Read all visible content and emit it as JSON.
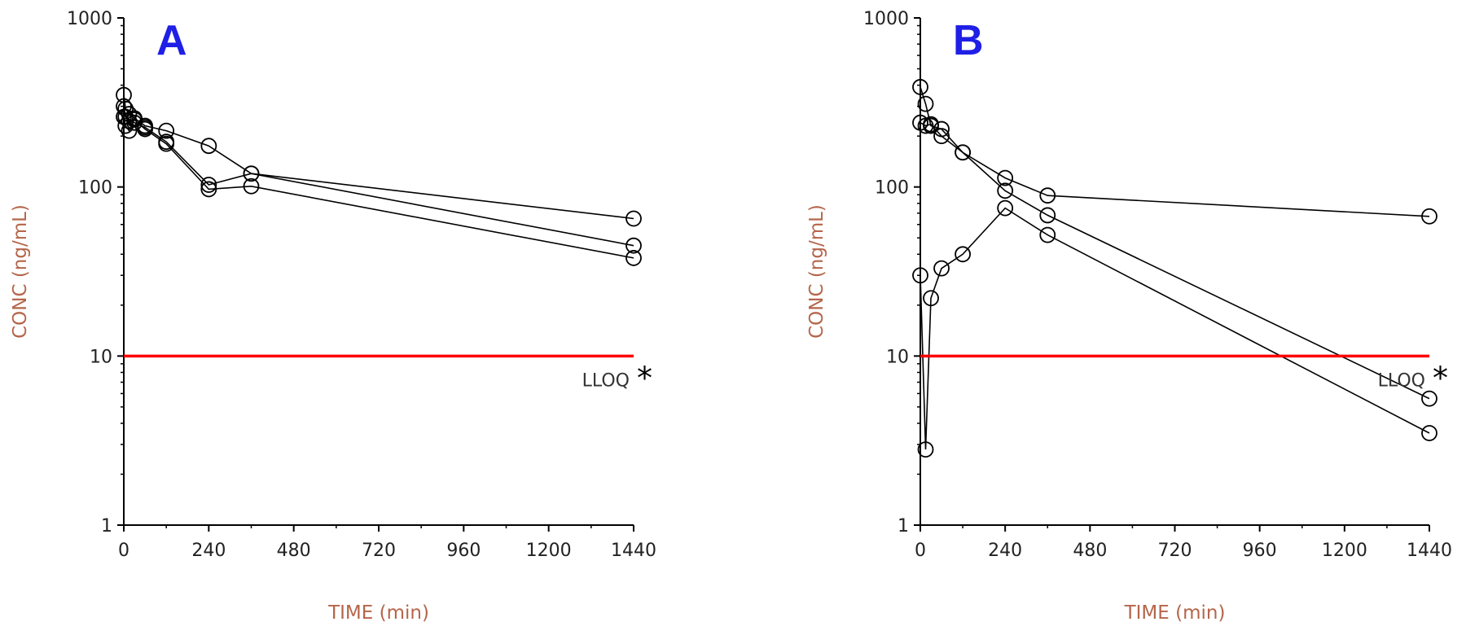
{
  "colors": {
    "axis_title": "#b5654a",
    "lloq_line": "#ff0000",
    "series": "#000000",
    "panel_letter": "#1f1fe6"
  },
  "chart_data": [
    {
      "type": "line",
      "panel": "A",
      "xlabel": "TIME (min)",
      "ylabel": "CONC (ng/mL)",
      "xlim": [
        0,
        1440
      ],
      "ylim": [
        1,
        1000
      ],
      "yscale": "log",
      "xticks": [
        "0",
        "240",
        "480",
        "720",
        "960",
        "1200",
        "1440"
      ],
      "yticks": [
        "1",
        "10",
        "100",
        "1000"
      ],
      "reference_line": {
        "y": 10,
        "label": "LLOQ",
        "marker": "*"
      },
      "series": [
        {
          "x": [
            0,
            5,
            15,
            30,
            60,
            120,
            240,
            360,
            1440
          ],
          "y": [
            350,
            290,
            270,
            255,
            230,
            215,
            175,
            120,
            65
          ]
        },
        {
          "x": [
            0,
            5,
            15,
            30,
            60,
            120,
            240,
            360,
            1440
          ],
          "y": [
            300,
            260,
            245,
            240,
            225,
            185,
            103,
            120,
            45
          ]
        },
        {
          "x": [
            0,
            5,
            15,
            30,
            60,
            120,
            240,
            360,
            1440
          ],
          "y": [
            260,
            230,
            215,
            250,
            220,
            180,
            97,
            101,
            38
          ]
        }
      ]
    },
    {
      "type": "line",
      "panel": "B",
      "xlabel": "TIME (min)",
      "ylabel": "CONC (ng/mL)",
      "xlim": [
        0,
        1440
      ],
      "ylim": [
        1,
        1000
      ],
      "yscale": "log",
      "xticks": [
        "0",
        "240",
        "480",
        "720",
        "960",
        "1200",
        "1440"
      ],
      "yticks": [
        "1",
        "10",
        "100",
        "1000"
      ],
      "reference_line": {
        "y": 10,
        "label": "LLOQ",
        "marker": "*"
      },
      "series": [
        {
          "x": [
            0,
            15,
            30,
            60,
            120,
            240,
            360,
            1440
          ],
          "y": [
            390,
            310,
            230,
            220,
            160,
            113,
            89,
            67
          ]
        },
        {
          "x": [
            0,
            15,
            30,
            60,
            120,
            240,
            360,
            1440
          ],
          "y": [
            240,
            230,
            235,
            200,
            160,
            95,
            68,
            5.6
          ]
        },
        {
          "x": [
            0,
            15,
            30,
            60,
            120,
            240,
            360,
            1440
          ],
          "y": [
            30,
            2.8,
            22,
            33,
            40,
            75,
            52,
            3.5
          ]
        }
      ]
    }
  ]
}
